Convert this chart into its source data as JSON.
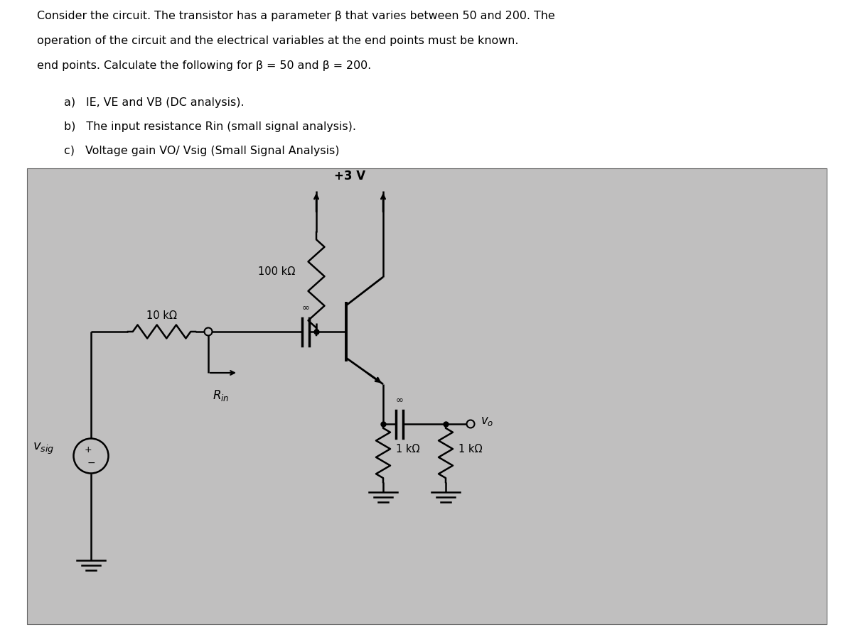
{
  "title_line1": "Consider the circuit. The transistor has a parameter β that varies between 50 and 200. The",
  "title_line2": "operation of the circuit and the electrical variables at the end points must be known.",
  "title_line3": "end points. Calculate the following for β = 50 and β = 200.",
  "item_a": "a)   IE, VE and VB (DC analysis).",
  "item_b": "b)   The input resistance Rin (small signal analysis).",
  "item_c": "c)   Voltage gain VO/ Vsig (Small Signal Analysis)",
  "supply_label": "+3 V",
  "r10k_label": "10 kΩ",
  "r100k_label": "100 kΩ",
  "r1k_left_label": "1 kΩ",
  "r1k_right_label": "1 kΩ",
  "rin_label": "R_{in}",
  "vsig_label": "v_{sig}",
  "vo_label": "v_o",
  "infinity": "∞",
  "circuit_bg": "#c0bfbf",
  "fig_w": 12.0,
  "fig_h": 8.97
}
